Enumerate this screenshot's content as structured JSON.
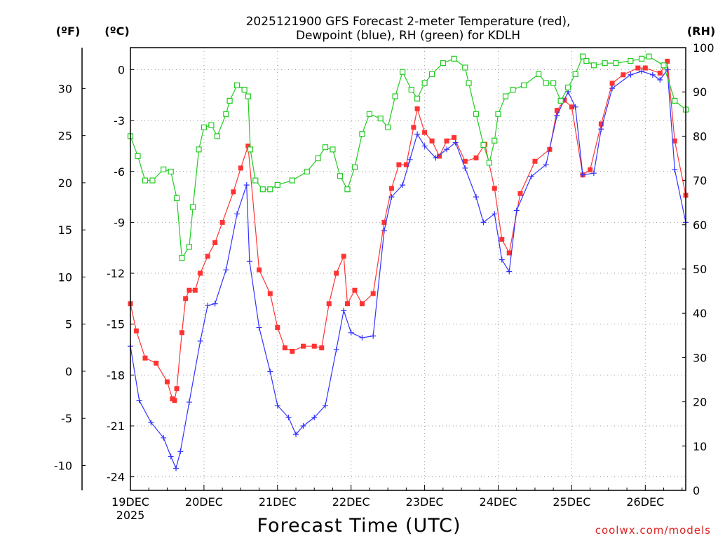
{
  "chart_data": {
    "type": "line",
    "title_line1": "2025121900 GFS Forecast 2-meter Temperature (red),",
    "title_line2": "Dewpoint (blue), RH (green) for KDLH",
    "xlabel": "Forecast Time (UTC)",
    "credit": "coolwx.com/models",
    "unit_f": "(ºF)",
    "unit_c": "(ºC)",
    "unit_rh": "(RH)",
    "x_range_days": [
      0,
      7.55
    ],
    "x_ticks": [
      {
        "label": "19DEC",
        "sub": "2025",
        "day": 0
      },
      {
        "label": "20DEC",
        "sub": "",
        "day": 1
      },
      {
        "label": "21DEC",
        "sub": "",
        "day": 2
      },
      {
        "label": "22DEC",
        "sub": "",
        "day": 3
      },
      {
        "label": "23DEC",
        "sub": "",
        "day": 4
      },
      {
        "label": "24DEC",
        "sub": "",
        "day": 5
      },
      {
        "label": "25DEC",
        "sub": "",
        "day": 6
      },
      {
        "label": "26DEC",
        "sub": "",
        "day": 7
      }
    ],
    "c_range": [
      -24.8,
      1.3
    ],
    "c_ticks": [
      0,
      -3,
      -6,
      -9,
      -12,
      -15,
      -18,
      -21,
      -24
    ],
    "f_ticks": [
      30,
      25,
      20,
      15,
      10,
      5,
      0,
      -5,
      -10
    ],
    "rh_range": [
      0,
      100
    ],
    "rh_ticks": [
      100,
      90,
      80,
      70,
      60,
      50,
      40,
      30,
      20,
      10,
      0
    ],
    "series": [
      {
        "name": "2-meter Temperature",
        "unit": "C",
        "color": "#ff3333",
        "marker": "square-filled",
        "points": [
          [
            0,
            -13.8
          ],
          [
            0.08,
            -15.4
          ],
          [
            0.2,
            -17
          ],
          [
            0.35,
            -17.3
          ],
          [
            0.5,
            -18.4
          ],
          [
            0.57,
            -19.4
          ],
          [
            0.6,
            -19.5
          ],
          [
            0.63,
            -18.8
          ],
          [
            0.7,
            -15.5
          ],
          [
            0.75,
            -13.5
          ],
          [
            0.8,
            -13
          ],
          [
            0.88,
            -13
          ],
          [
            0.95,
            -12
          ],
          [
            1.05,
            -11
          ],
          [
            1.15,
            -10.2
          ],
          [
            1.25,
            -9
          ],
          [
            1.4,
            -7.2
          ],
          [
            1.5,
            -5.8
          ],
          [
            1.6,
            -4.5
          ],
          [
            1.75,
            -11.8
          ],
          [
            1.9,
            -13.2
          ],
          [
            2.0,
            -15.2
          ],
          [
            2.1,
            -16.4
          ],
          [
            2.2,
            -16.6
          ],
          [
            2.35,
            -16.3
          ],
          [
            2.5,
            -16.3
          ],
          [
            2.6,
            -16.4
          ],
          [
            2.7,
            -13.8
          ],
          [
            2.8,
            -12
          ],
          [
            2.9,
            -11
          ],
          [
            2.95,
            -13.8
          ],
          [
            3.05,
            -13
          ],
          [
            3.15,
            -13.8
          ],
          [
            3.3,
            -13.2
          ],
          [
            3.45,
            -9
          ],
          [
            3.55,
            -7
          ],
          [
            3.65,
            -5.6
          ],
          [
            3.75,
            -5.6
          ],
          [
            3.85,
            -3.4
          ],
          [
            3.9,
            -2.3
          ],
          [
            4.0,
            -3.7
          ],
          [
            4.1,
            -4.2
          ],
          [
            4.2,
            -5.1
          ],
          [
            4.3,
            -4.2
          ],
          [
            4.4,
            -4
          ],
          [
            4.55,
            -5.4
          ],
          [
            4.7,
            -5.2
          ],
          [
            4.82,
            -4.4
          ],
          [
            4.95,
            -7
          ],
          [
            5.05,
            -10
          ],
          [
            5.15,
            -10.8
          ],
          [
            5.3,
            -7.3
          ],
          [
            5.5,
            -5.4
          ],
          [
            5.7,
            -4.7
          ],
          [
            5.8,
            -2.4
          ],
          [
            5.9,
            -1.8
          ],
          [
            6.0,
            -2.2
          ],
          [
            6.15,
            -6.2
          ],
          [
            6.25,
            -5.9
          ],
          [
            6.4,
            -3.2
          ],
          [
            6.55,
            -0.8
          ],
          [
            6.7,
            -0.3
          ],
          [
            6.9,
            0.1
          ],
          [
            7.0,
            0.1
          ],
          [
            7.2,
            -0.2
          ],
          [
            7.3,
            0.5
          ],
          [
            7.4,
            -4.2
          ],
          [
            7.55,
            -7.4
          ]
        ]
      },
      {
        "name": "Dewpoint",
        "unit": "C",
        "color": "#3333ff",
        "marker": "plus",
        "points": [
          [
            0,
            -16.3
          ],
          [
            0.12,
            -19.5
          ],
          [
            0.28,
            -20.8
          ],
          [
            0.45,
            -21.7
          ],
          [
            0.55,
            -22.8
          ],
          [
            0.62,
            -23.5
          ],
          [
            0.68,
            -22.5
          ],
          [
            0.8,
            -19.6
          ],
          [
            0.95,
            -16
          ],
          [
            1.05,
            -13.9
          ],
          [
            1.15,
            -13.8
          ],
          [
            1.3,
            -11.8
          ],
          [
            1.45,
            -8.5
          ],
          [
            1.58,
            -6.8
          ],
          [
            1.62,
            -11.3
          ],
          [
            1.75,
            -15.2
          ],
          [
            1.9,
            -17.8
          ],
          [
            2.0,
            -19.8
          ],
          [
            2.15,
            -20.5
          ],
          [
            2.25,
            -21.5
          ],
          [
            2.35,
            -21
          ],
          [
            2.5,
            -20.5
          ],
          [
            2.65,
            -19.8
          ],
          [
            2.8,
            -16.5
          ],
          [
            2.9,
            -14.2
          ],
          [
            3.0,
            -15.5
          ],
          [
            3.15,
            -15.8
          ],
          [
            3.3,
            -15.7
          ],
          [
            3.45,
            -9.5
          ],
          [
            3.55,
            -7.5
          ],
          [
            3.7,
            -6.8
          ],
          [
            3.8,
            -5.3
          ],
          [
            3.9,
            -3.8
          ],
          [
            4.0,
            -4.5
          ],
          [
            4.15,
            -5.2
          ],
          [
            4.3,
            -4.7
          ],
          [
            4.42,
            -4.3
          ],
          [
            4.55,
            -5.8
          ],
          [
            4.7,
            -7.5
          ],
          [
            4.8,
            -9
          ],
          [
            4.95,
            -8.5
          ],
          [
            5.05,
            -11.2
          ],
          [
            5.15,
            -11.9
          ],
          [
            5.25,
            -8.3
          ],
          [
            5.45,
            -6.3
          ],
          [
            5.65,
            -5.6
          ],
          [
            5.8,
            -2.7
          ],
          [
            5.95,
            -1.3
          ],
          [
            6.05,
            -2.2
          ],
          [
            6.15,
            -6.2
          ],
          [
            6.3,
            -6.1
          ],
          [
            6.4,
            -3.5
          ],
          [
            6.55,
            -1.1
          ],
          [
            6.8,
            -0.3
          ],
          [
            6.95,
            -0.1
          ],
          [
            7.1,
            -0.3
          ],
          [
            7.2,
            -0.6
          ],
          [
            7.3,
            0
          ],
          [
            7.4,
            -5.9
          ],
          [
            7.55,
            -9
          ]
        ]
      },
      {
        "name": "RH",
        "unit": "%",
        "color": "#22cc22",
        "marker": "square-open",
        "points": [
          [
            0,
            80
          ],
          [
            0.1,
            75.5
          ],
          [
            0.2,
            70
          ],
          [
            0.3,
            70
          ],
          [
            0.45,
            72.5
          ],
          [
            0.55,
            72
          ],
          [
            0.63,
            66
          ],
          [
            0.7,
            52.5
          ],
          [
            0.8,
            55
          ],
          [
            0.85,
            64
          ],
          [
            0.93,
            77
          ],
          [
            1.0,
            82
          ],
          [
            1.1,
            82.5
          ],
          [
            1.18,
            80
          ],
          [
            1.3,
            85
          ],
          [
            1.35,
            88
          ],
          [
            1.45,
            91.5
          ],
          [
            1.55,
            90.5
          ],
          [
            1.6,
            89
          ],
          [
            1.63,
            77
          ],
          [
            1.7,
            70
          ],
          [
            1.8,
            68
          ],
          [
            1.9,
            68
          ],
          [
            2.0,
            69
          ],
          [
            2.2,
            70
          ],
          [
            2.4,
            72
          ],
          [
            2.55,
            75
          ],
          [
            2.65,
            77.5
          ],
          [
            2.75,
            77
          ],
          [
            2.85,
            71
          ],
          [
            2.95,
            68
          ],
          [
            3.05,
            73
          ],
          [
            3.15,
            80.5
          ],
          [
            3.25,
            85
          ],
          [
            3.4,
            84
          ],
          [
            3.5,
            82
          ],
          [
            3.6,
            89
          ],
          [
            3.7,
            94.5
          ],
          [
            3.82,
            90.5
          ],
          [
            3.9,
            88.5
          ],
          [
            4.0,
            92
          ],
          [
            4.1,
            94
          ],
          [
            4.25,
            96.5
          ],
          [
            4.4,
            97.5
          ],
          [
            4.55,
            95.5
          ],
          [
            4.6,
            92
          ],
          [
            4.7,
            85
          ],
          [
            4.8,
            78
          ],
          [
            4.88,
            74
          ],
          [
            4.95,
            79
          ],
          [
            5.0,
            85
          ],
          [
            5.1,
            89
          ],
          [
            5.2,
            90.5
          ],
          [
            5.35,
            91.5
          ],
          [
            5.55,
            94
          ],
          [
            5.65,
            92
          ],
          [
            5.75,
            92
          ],
          [
            5.85,
            88
          ],
          [
            5.95,
            91
          ],
          [
            6.05,
            94
          ],
          [
            6.15,
            98
          ],
          [
            6.2,
            97
          ],
          [
            6.3,
            96
          ],
          [
            6.45,
            96.5
          ],
          [
            6.6,
            96.5
          ],
          [
            6.8,
            97
          ],
          [
            6.95,
            97.5
          ],
          [
            7.05,
            98
          ],
          [
            7.25,
            96
          ],
          [
            7.4,
            88
          ],
          [
            7.55,
            86
          ]
        ]
      }
    ]
  }
}
